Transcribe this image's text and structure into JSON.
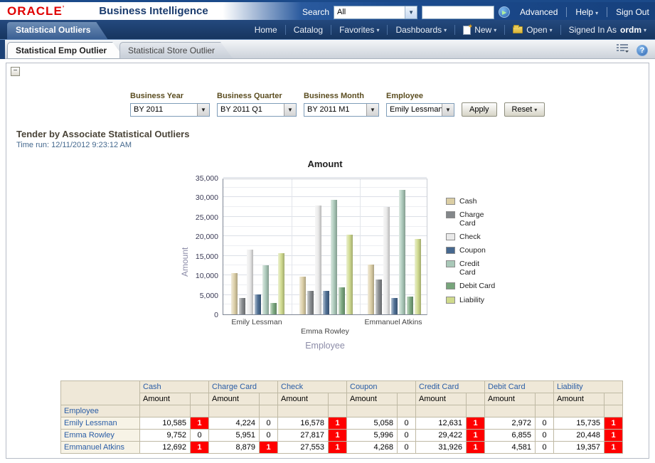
{
  "header": {
    "logo": "ORACLE",
    "product": "Business Intelligence",
    "search_label": "Search",
    "search_scope": "All",
    "search_value": "",
    "advanced": "Advanced",
    "help": "Help",
    "sign_out": "Sign Out"
  },
  "navbar": {
    "dashboard_tab": "Statistical Outliers",
    "items": [
      "Home",
      "Catalog",
      "Favorites",
      "Dashboards"
    ],
    "new_label": "New",
    "open_label": "Open",
    "signed_in_as": "Signed In As",
    "user": "ordm"
  },
  "subtabs": {
    "active": "Statistical Emp Outlier",
    "inactive": "Statistical Store Outlier"
  },
  "filters": {
    "prompts": [
      {
        "label": "Business Year",
        "value": "BY 2011"
      },
      {
        "label": "Business Quarter",
        "value": "BY 2011 Q1"
      },
      {
        "label": "Business Month",
        "value": "BY 2011 M1"
      },
      {
        "label": "Employee",
        "value": "Emily Lessman;Er"
      }
    ],
    "apply_label": "Apply",
    "reset_label": "Reset"
  },
  "report": {
    "title": "Tender by Associate Statistical Outliers",
    "time_run": "Time run: 12/11/2012 9:23:12 AM"
  },
  "chart_data": {
    "type": "bar",
    "title": "Amount",
    "xlabel": "Employee",
    "ylabel": "Amount",
    "ylim": [
      0,
      35000
    ],
    "ytick_step": 5000,
    "grid": true,
    "legend_position": "right",
    "categories": [
      "Emily Lessman",
      "Emma Rowley",
      "Emmanuel Atkins"
    ],
    "series": [
      {
        "name": "Cash",
        "color": "#dbcea4",
        "values": [
          10585,
          9752,
          12692
        ]
      },
      {
        "name": "Charge Card",
        "color": "#83878a",
        "values": [
          4224,
          5951,
          8879
        ]
      },
      {
        "name": "Check",
        "color": "#e9e9e9",
        "values": [
          16578,
          27817,
          27553
        ]
      },
      {
        "name": "Coupon",
        "color": "#46688f",
        "values": [
          5058,
          5996,
          4268
        ]
      },
      {
        "name": "Credit Card",
        "color": "#a9c8b8",
        "values": [
          12631,
          29422,
          31926
        ]
      },
      {
        "name": "Debit Card",
        "color": "#77a57b",
        "values": [
          2972,
          6855,
          4581
        ]
      },
      {
        "name": "Liability",
        "color": "#cfda8c",
        "values": [
          15735,
          20448,
          19357
        ]
      }
    ]
  },
  "table": {
    "row_header": "Employee",
    "sub_header": "Amount",
    "groups": [
      "Cash",
      "Charge Card",
      "Check",
      "Coupon",
      "Credit Card",
      "Debit Card",
      "Liability"
    ],
    "rows": [
      {
        "name": "Emily Lessman",
        "cells": [
          {
            "amount": "10,585",
            "flag": "1",
            "alert": true
          },
          {
            "amount": "4,224",
            "flag": "0",
            "alert": false
          },
          {
            "amount": "16,578",
            "flag": "1",
            "alert": true
          },
          {
            "amount": "5,058",
            "flag": "0",
            "alert": false
          },
          {
            "amount": "12,631",
            "flag": "1",
            "alert": true
          },
          {
            "amount": "2,972",
            "flag": "0",
            "alert": false
          },
          {
            "amount": "15,735",
            "flag": "1",
            "alert": true
          }
        ]
      },
      {
        "name": "Emma Rowley",
        "cells": [
          {
            "amount": "9,752",
            "flag": "0",
            "alert": false
          },
          {
            "amount": "5,951",
            "flag": "0",
            "alert": false
          },
          {
            "amount": "27,817",
            "flag": "1",
            "alert": true
          },
          {
            "amount": "5,996",
            "flag": "0",
            "alert": false
          },
          {
            "amount": "29,422",
            "flag": "1",
            "alert": true
          },
          {
            "amount": "6,855",
            "flag": "0",
            "alert": false
          },
          {
            "amount": "20,448",
            "flag": "1",
            "alert": true
          }
        ]
      },
      {
        "name": "Emmanuel Atkins",
        "cells": [
          {
            "amount": "12,692",
            "flag": "1",
            "alert": true
          },
          {
            "amount": "8,879",
            "flag": "1",
            "alert": true
          },
          {
            "amount": "27,553",
            "flag": "1",
            "alert": true
          },
          {
            "amount": "4,268",
            "flag": "0",
            "alert": false
          },
          {
            "amount": "31,926",
            "flag": "1",
            "alert": true
          },
          {
            "amount": "4,581",
            "flag": "0",
            "alert": false
          },
          {
            "amount": "19,357",
            "flag": "1",
            "alert": true
          }
        ]
      }
    ]
  }
}
